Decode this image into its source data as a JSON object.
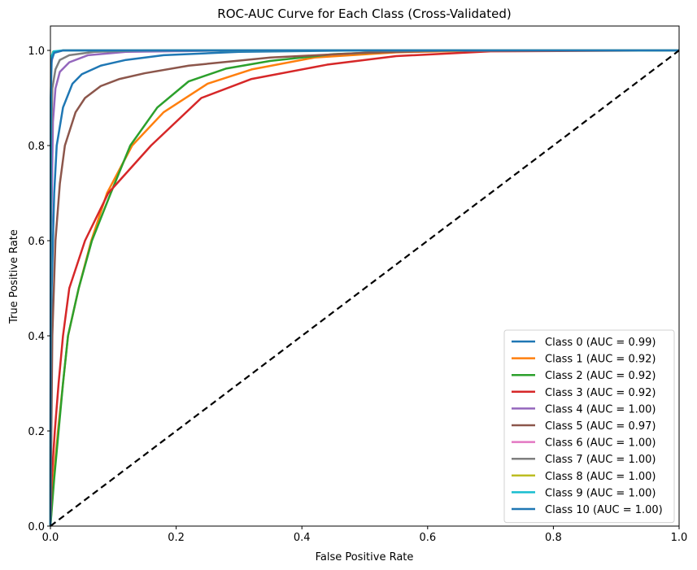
{
  "chart_data": {
    "type": "line",
    "title": "ROC-AUC Curve for Each Class (Cross-Validated)",
    "xlabel": "False Positive Rate",
    "ylabel": "True Positive Rate",
    "xlim": [
      0.0,
      1.0
    ],
    "ylim": [
      0.0,
      1.05
    ],
    "xticks": [
      "0.0",
      "0.2",
      "0.4",
      "0.6",
      "0.8",
      "1.0"
    ],
    "yticks": [
      "0.0",
      "0.2",
      "0.4",
      "0.6",
      "0.8",
      "1.0"
    ],
    "grid": false,
    "legend_position": "lower right",
    "diagonal": {
      "style": "dashed",
      "color": "#000000",
      "points": [
        [
          0,
          0
        ],
        [
          1,
          1
        ]
      ]
    },
    "series": [
      {
        "name": "Class 0 (AUC = 0.99)",
        "color": "#1f77b4",
        "points": [
          [
            0,
            0
          ],
          [
            0.002,
            0.5
          ],
          [
            0.006,
            0.7
          ],
          [
            0.01,
            0.8
          ],
          [
            0.02,
            0.88
          ],
          [
            0.035,
            0.93
          ],
          [
            0.05,
            0.95
          ],
          [
            0.08,
            0.968
          ],
          [
            0.12,
            0.98
          ],
          [
            0.18,
            0.99
          ],
          [
            0.3,
            0.997
          ],
          [
            0.5,
            1.0
          ],
          [
            1,
            1
          ]
        ]
      },
      {
        "name": "Class 1 (AUC = 0.92)",
        "color": "#ff7f0e",
        "points": [
          [
            0,
            0
          ],
          [
            0.005,
            0.1
          ],
          [
            0.012,
            0.2
          ],
          [
            0.02,
            0.3
          ],
          [
            0.028,
            0.4
          ],
          [
            0.045,
            0.5
          ],
          [
            0.065,
            0.6
          ],
          [
            0.09,
            0.7
          ],
          [
            0.13,
            0.8
          ],
          [
            0.18,
            0.87
          ],
          [
            0.25,
            0.93
          ],
          [
            0.32,
            0.96
          ],
          [
            0.42,
            0.985
          ],
          [
            0.55,
            0.996
          ],
          [
            0.7,
            1.0
          ],
          [
            1,
            1
          ]
        ]
      },
      {
        "name": "Class 2 (AUC = 0.92)",
        "color": "#2ca02c",
        "points": [
          [
            0,
            0
          ],
          [
            0.006,
            0.1
          ],
          [
            0.013,
            0.2
          ],
          [
            0.02,
            0.3
          ],
          [
            0.028,
            0.4
          ],
          [
            0.045,
            0.5
          ],
          [
            0.066,
            0.6
          ],
          [
            0.096,
            0.7
          ],
          [
            0.127,
            0.8
          ],
          [
            0.17,
            0.88
          ],
          [
            0.22,
            0.935
          ],
          [
            0.28,
            0.962
          ],
          [
            0.35,
            0.978
          ],
          [
            0.45,
            0.992
          ],
          [
            0.6,
            1.0
          ],
          [
            1,
            1
          ]
        ]
      },
      {
        "name": "Class 3 (AUC = 0.92)",
        "color": "#d62728",
        "points": [
          [
            0,
            0
          ],
          [
            0.002,
            0.1
          ],
          [
            0.007,
            0.2
          ],
          [
            0.013,
            0.3
          ],
          [
            0.02,
            0.4
          ],
          [
            0.03,
            0.5
          ],
          [
            0.055,
            0.6
          ],
          [
            0.092,
            0.7
          ],
          [
            0.16,
            0.8
          ],
          [
            0.24,
            0.9
          ],
          [
            0.32,
            0.94
          ],
          [
            0.44,
            0.97
          ],
          [
            0.55,
            0.988
          ],
          [
            0.7,
            0.998
          ],
          [
            1,
            1
          ]
        ]
      },
      {
        "name": "Class 4 (AUC = 1.00)",
        "color": "#9467bd",
        "points": [
          [
            0,
            0
          ],
          [
            0.001,
            0.6
          ],
          [
            0.004,
            0.85
          ],
          [
            0.008,
            0.92
          ],
          [
            0.015,
            0.955
          ],
          [
            0.03,
            0.975
          ],
          [
            0.06,
            0.99
          ],
          [
            0.12,
            0.997
          ],
          [
            0.3,
            1.0
          ],
          [
            1,
            1
          ]
        ]
      },
      {
        "name": "Class 5 (AUC = 0.97)",
        "color": "#8c564b",
        "points": [
          [
            0,
            0
          ],
          [
            0.003,
            0.4
          ],
          [
            0.008,
            0.6
          ],
          [
            0.015,
            0.72
          ],
          [
            0.023,
            0.8
          ],
          [
            0.04,
            0.87
          ],
          [
            0.055,
            0.9
          ],
          [
            0.08,
            0.925
          ],
          [
            0.11,
            0.94
          ],
          [
            0.15,
            0.952
          ],
          [
            0.22,
            0.968
          ],
          [
            0.35,
            0.985
          ],
          [
            0.5,
            0.995
          ],
          [
            0.65,
            1.0
          ],
          [
            1,
            1
          ]
        ]
      },
      {
        "name": "Class 6 (AUC = 1.00)",
        "color": "#e377c2",
        "points": [
          [
            0,
            0
          ],
          [
            0.001,
            0.97
          ],
          [
            0.005,
            0.995
          ],
          [
            0.02,
            1.0
          ],
          [
            1,
            1
          ]
        ]
      },
      {
        "name": "Class 7 (AUC = 1.00)",
        "color": "#7f7f7f",
        "points": [
          [
            0,
            0
          ],
          [
            0.001,
            0.8
          ],
          [
            0.003,
            0.92
          ],
          [
            0.008,
            0.96
          ],
          [
            0.015,
            0.98
          ],
          [
            0.03,
            0.99
          ],
          [
            0.07,
            0.997
          ],
          [
            0.15,
            1.0
          ],
          [
            1,
            1
          ]
        ]
      },
      {
        "name": "Class 8 (AUC = 1.00)",
        "color": "#bcbd22",
        "points": [
          [
            0,
            0
          ],
          [
            0.001,
            0.98
          ],
          [
            0.004,
            0.997
          ],
          [
            0.02,
            1.0
          ],
          [
            1,
            1
          ]
        ]
      },
      {
        "name": "Class 9 (AUC = 1.00)",
        "color": "#17becf",
        "points": [
          [
            0,
            0
          ],
          [
            0.001,
            0.985
          ],
          [
            0.005,
            0.998
          ],
          [
            0.02,
            1.0
          ],
          [
            1,
            1
          ]
        ]
      },
      {
        "name": "Class 10 (AUC = 1.00)",
        "color": "#1f77b4",
        "points": [
          [
            0,
            0
          ],
          [
            0.0005,
            0.9
          ],
          [
            0.002,
            0.98
          ],
          [
            0.006,
            0.995
          ],
          [
            0.02,
            1.0
          ],
          [
            1,
            1
          ]
        ]
      }
    ]
  }
}
